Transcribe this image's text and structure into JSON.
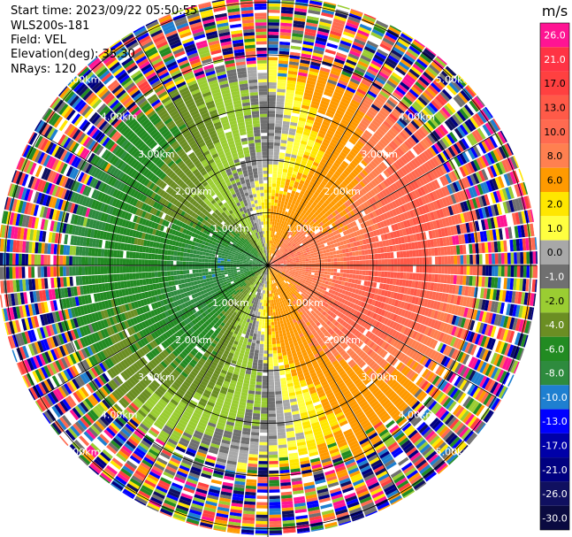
{
  "info": {
    "start_time": "Start time: 2023/09/22 05:50:55",
    "instrument": "WLS200s-181",
    "field": "Field: VEL",
    "elevation": "Elevation(deg): 35.30",
    "nrays": "NRays: 120"
  },
  "chart_data": {
    "type": "heatmap",
    "projection": "polar-ppi",
    "field": "VEL",
    "units": "m/s",
    "elevation_deg": 35.3,
    "n_rays": 120,
    "range_rings_km": [
      1,
      2,
      3,
      4,
      5
    ],
    "range_labels": [
      "1.00km",
      "2.00km",
      "3.00km",
      "4.00km",
      "5.00km"
    ],
    "colorbar": {
      "units": "m/s",
      "ticks": [
        "26.0",
        "21.0",
        "17.0",
        "13.0",
        "10.0",
        "8.0",
        "6.0",
        "2.0",
        "1.0",
        "0.0",
        "-1.0",
        "-2.0",
        "-4.0",
        "-6.0",
        "-8.0",
        "-10.0",
        "-13.0",
        "-17.0",
        "-21.0",
        "-26.0",
        "-30.0"
      ],
      "colors": [
        "#ff1493",
        "#ff3344",
        "#ff4040",
        "#ff5a48",
        "#ff6a50",
        "#ff8050",
        "#ff9a00",
        "#ffe600",
        "#ffff40",
        "#a8a8a8",
        "#707070",
        "#9acd32",
        "#6b8e23",
        "#228b22",
        "#2e8b3e",
        "#1e7fd0",
        "#0000ff",
        "#0000a8",
        "#000080",
        "#101060",
        "#0a0a40"
      ]
    },
    "velocity_pattern": {
      "description": "Inner region (< ~3 km) shows coherent dipole: negative (green/blue) toward west, positive (yellow/orange/red) toward east; outer region (> ~4 km) is noisy.",
      "inner_negative_peak_ms": -8.0,
      "inner_positive_peak_ms": 10.0,
      "coherent_range_km": 3.8
    }
  }
}
